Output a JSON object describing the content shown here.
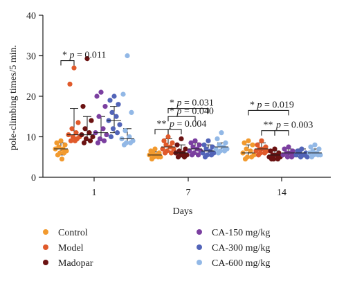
{
  "chart_data": {
    "type": "scatter",
    "ylabel": "pole-climbing times/5 min.",
    "xlabel": "Days",
    "ylim": [
      0,
      40
    ],
    "yticks": [
      0,
      10,
      20,
      30,
      40
    ],
    "categories": [
      "1",
      "7",
      "14"
    ],
    "series": [
      {
        "name": "Control",
        "color": "#f29a2e",
        "summary": [
          [
            7,
            5.5,
            8.5
          ],
          [
            5.5,
            4.8,
            6.3
          ],
          [
            6,
            5,
            8
          ]
        ],
        "points": [
          [
            9,
            8.5,
            8,
            7.5,
            7,
            7,
            6.5,
            6,
            6,
            5.5,
            4.5
          ],
          [
            7,
            6.5,
            6,
            6,
            5.5,
            5.5,
            5,
            5,
            5,
            4.5
          ],
          [
            9,
            8.5,
            8,
            7,
            6.5,
            6,
            5.5,
            5,
            5,
            4.5
          ]
        ]
      },
      {
        "name": "Model",
        "color": "#e05a2b",
        "summary": [
          [
            10.5,
            9,
            17
          ],
          [
            7.5,
            6.5,
            9.5
          ],
          [
            7,
            6,
            8.5
          ]
        ],
        "points": [
          [
            27,
            23,
            13.5,
            12,
            11,
            10.5,
            10,
            10,
            9.5,
            9,
            9
          ],
          [
            10,
            9,
            8.5,
            8,
            7.5,
            7,
            7,
            6.5,
            6,
            6
          ],
          [
            9,
            8,
            7.5,
            7,
            7,
            6.5,
            6.5,
            6,
            6,
            5.5
          ]
        ]
      },
      {
        "name": "Madopar",
        "color": "#6b1212",
        "summary": [
          [
            10.5,
            9,
            15
          ],
          [
            6,
            5,
            8
          ],
          [
            5.5,
            4.8,
            6.5
          ]
        ],
        "points": [
          [
            29.3,
            17.5,
            14,
            12,
            11,
            10.5,
            10,
            9.5,
            9,
            8.5
          ],
          [
            9.5,
            8,
            7,
            6.5,
            6,
            6,
            5.5,
            5.5,
            5,
            5
          ],
          [
            7,
            6.5,
            6,
            5.5,
            5.5,
            5,
            5,
            4.5,
            4.5,
            4.5
          ]
        ]
      },
      {
        "name": "CA-150 mg/kg",
        "color": "#7b3fa0",
        "summary": [
          [
            11,
            9,
            15
          ],
          [
            7,
            6,
            8.5
          ],
          [
            6,
            5.5,
            7
          ]
        ],
        "points": [
          [
            21,
            20,
            17.5,
            15,
            12,
            11,
            10.5,
            9.5,
            9,
            8.5
          ],
          [
            9,
            8.5,
            8,
            7.5,
            7,
            6.5,
            6.5,
            6,
            5.5,
            5.5
          ],
          [
            7.5,
            7,
            6.5,
            6,
            6,
            5.5,
            5.5,
            5,
            5
          ]
        ]
      },
      {
        "name": "CA-300 mg/kg",
        "color": "#5264b8",
        "summary": [
          [
            14,
            11,
            17.5
          ],
          [
            6.5,
            5.5,
            8
          ],
          [
            6,
            5,
            7
          ]
        ],
        "points": [
          [
            20,
            19,
            18,
            16,
            15,
            14,
            13,
            12,
            11,
            10
          ],
          [
            9,
            8,
            7.5,
            7,
            6.5,
            6,
            6,
            5.5,
            5.5,
            5
          ],
          [
            7,
            6.5,
            6,
            6,
            5.5,
            5.5,
            5,
            5
          ]
        ]
      },
      {
        "name": "CA-600 mg/kg",
        "color": "#92b8e6",
        "summary": [
          [
            9.5,
            8.5,
            12
          ],
          [
            7.5,
            6.5,
            8.5
          ],
          [
            6,
            5.5,
            7
          ]
        ],
        "points": [
          [
            30,
            20.5,
            16,
            11.5,
            10,
            9.5,
            9,
            8.5,
            8.5,
            8
          ],
          [
            11,
            9.5,
            8.5,
            8,
            7.5,
            7,
            7,
            6.5,
            6.5,
            6
          ],
          [
            8,
            7.5,
            7,
            6.5,
            6,
            6,
            5.5,
            5.5,
            5.5,
            5
          ]
        ]
      }
    ],
    "annotations": [
      {
        "day": 0,
        "from": 0,
        "to": 1,
        "level": 28.8,
        "text": "* p = 0.011"
      },
      {
        "day": 1,
        "from": 0,
        "to": 1,
        "level": 11.8,
        "text": "**"
      },
      {
        "day": 1,
        "from": 1,
        "to": 2,
        "level": 11.8,
        "text": "p = 0.004"
      },
      {
        "day": 1,
        "from": 1,
        "to": 3,
        "level": 15.0,
        "text": "* p = 0.040"
      },
      {
        "day": 1,
        "from": 1,
        "to": 4,
        "level": 17.0,
        "text": "* p = 0.031"
      },
      {
        "day": 2,
        "from": 1,
        "to": 2,
        "level": 11.5,
        "text": "**"
      },
      {
        "day": 2,
        "from": 2,
        "to": 3,
        "level": 11.5,
        "text": "p = 0.003"
      },
      {
        "day": 2,
        "from": 0,
        "to": 3,
        "level": 16.5,
        "text": "* p = 0.019"
      }
    ],
    "legend_position": "bottom"
  }
}
